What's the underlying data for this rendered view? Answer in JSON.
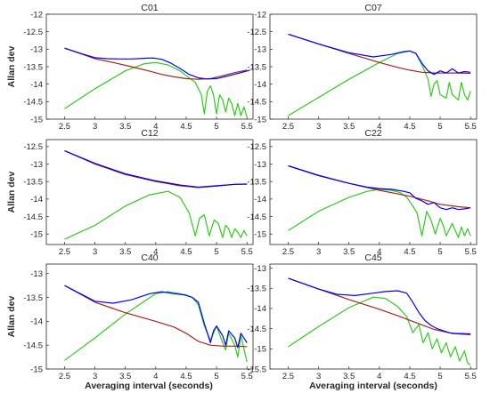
{
  "figure": {
    "ylabel": "Allan dev",
    "xlabel": "Averaging interval (seconds)",
    "colors": {
      "total": "#0000ff",
      "red": "#a0261e",
      "green": "#2ecc1a"
    },
    "x_ticks": [
      "2.5",
      "3",
      "3.5",
      "4",
      "4.5",
      "5",
      "5.5"
    ]
  },
  "chart_data": [
    {
      "type": "line",
      "title": "C01",
      "xlim": [
        2.2,
        5.6
      ],
      "ylim": [
        -15,
        -12
      ],
      "yticks": [
        "-12",
        "-12.5",
        "-13",
        "-13.5",
        "-14",
        "-14.5",
        "-15"
      ],
      "series": [
        {
          "x": [
            2.5,
            2.8,
            3.0,
            3.3,
            3.6,
            3.9,
            4.1,
            4.3,
            4.5,
            4.7,
            4.9,
            5.1,
            5.3,
            5.5
          ],
          "values": [
            -12.97,
            -13.15,
            -13.27,
            -13.38,
            -13.5,
            -13.63,
            -13.72,
            -13.79,
            -13.84,
            -13.86,
            -13.84,
            -13.76,
            -13.67,
            -13.6
          ]
        },
        {
          "x": [
            2.5,
            2.8,
            3.0,
            3.2,
            3.4,
            3.6,
            3.8,
            3.95,
            4.1,
            4.25,
            4.4,
            4.55,
            4.7,
            4.85,
            5.0,
            5.2,
            5.4,
            5.55
          ],
          "values": [
            -12.97,
            -13.14,
            -13.24,
            -13.27,
            -13.28,
            -13.28,
            -13.26,
            -13.25,
            -13.29,
            -13.4,
            -13.55,
            -13.72,
            -13.82,
            -13.85,
            -13.84,
            -13.76,
            -13.67,
            -13.6
          ]
        },
        {
          "x": [
            2.5,
            3.0,
            3.5,
            3.8,
            4.0,
            4.2,
            4.4,
            4.55,
            4.65,
            4.75,
            4.8,
            4.85,
            4.9,
            4.95,
            5.0,
            5.05,
            5.1,
            5.15,
            5.2,
            5.25,
            5.3,
            5.35,
            5.4,
            5.45,
            5.5
          ],
          "values": [
            -14.7,
            -14.13,
            -13.62,
            -13.42,
            -13.38,
            -13.45,
            -13.62,
            -13.82,
            -13.95,
            -14.3,
            -14.85,
            -14.2,
            -14.05,
            -14.3,
            -14.85,
            -14.3,
            -14.45,
            -14.8,
            -14.4,
            -14.55,
            -14.9,
            -14.55,
            -14.9,
            -14.65,
            -14.95
          ]
        }
      ]
    },
    {
      "type": "line",
      "title": "C07",
      "xlim": [
        2.2,
        5.6
      ],
      "ylim": [
        -15,
        -12
      ],
      "yticks": [
        "-12",
        "-12.5",
        "-13",
        "-13.5",
        "-14",
        "-14.5",
        "-15"
      ],
      "series": [
        {
          "x": [
            2.5,
            3.0,
            3.5,
            4.0,
            4.3,
            4.5,
            4.7,
            4.9,
            5.1,
            5.3,
            5.5
          ],
          "values": [
            -12.57,
            -12.85,
            -13.12,
            -13.38,
            -13.52,
            -13.6,
            -13.66,
            -13.68,
            -13.68,
            -13.68,
            -13.69
          ]
        },
        {
          "x": [
            2.5,
            3.0,
            3.5,
            3.9,
            4.2,
            4.4,
            4.5,
            4.6,
            4.7,
            4.8,
            4.9,
            5.0,
            5.1,
            5.2,
            5.3,
            5.4,
            5.5
          ],
          "values": [
            -12.57,
            -12.85,
            -13.1,
            -13.22,
            -13.15,
            -13.07,
            -13.05,
            -13.12,
            -13.4,
            -13.62,
            -13.72,
            -13.62,
            -13.68,
            -13.56,
            -13.68,
            -13.64,
            -13.66
          ]
        },
        {
          "x": [
            2.5,
            3.0,
            3.5,
            4.0,
            4.3,
            4.5,
            4.6,
            4.7,
            4.8,
            4.85,
            4.9,
            4.95,
            5.0,
            5.1,
            5.15,
            5.2,
            5.3,
            5.35,
            5.4,
            5.45,
            5.5
          ],
          "values": [
            -14.9,
            -14.38,
            -13.86,
            -13.38,
            -13.12,
            -13.05,
            -13.12,
            -13.45,
            -13.85,
            -14.35,
            -14.0,
            -13.9,
            -14.3,
            -14.4,
            -13.95,
            -14.3,
            -14.45,
            -13.95,
            -14.3,
            -14.45,
            -14.2
          ]
        }
      ]
    },
    {
      "type": "line",
      "title": "C12",
      "xlim": [
        2.2,
        5.6
      ],
      "ylim": [
        -15.3,
        -12.3
      ],
      "yticks": [
        "-12.5",
        "-13",
        "-13.5",
        "-14",
        "-14.5",
        "-15"
      ],
      "series": [
        {
          "x": [
            2.5,
            3.0,
            3.5,
            4.0,
            4.4,
            4.7,
            5.0,
            5.3,
            5.5
          ],
          "values": [
            -12.62,
            -13.0,
            -13.3,
            -13.5,
            -13.62,
            -13.67,
            -13.63,
            -13.58,
            -13.57
          ]
        },
        {
          "x": [
            2.5,
            3.0,
            3.5,
            4.0,
            4.4,
            4.7,
            5.0,
            5.3,
            5.5
          ],
          "values": [
            -12.62,
            -12.98,
            -13.28,
            -13.48,
            -13.6,
            -13.66,
            -13.62,
            -13.58,
            -13.57
          ]
        },
        {
          "x": [
            2.5,
            3.0,
            3.5,
            3.9,
            4.2,
            4.4,
            4.55,
            4.65,
            4.72,
            4.8,
            4.88,
            4.96,
            5.03,
            5.1,
            5.15,
            5.2,
            5.25,
            5.3,
            5.35,
            5.4,
            5.45,
            5.5
          ],
          "values": [
            -15.15,
            -14.75,
            -14.2,
            -13.88,
            -13.78,
            -13.95,
            -14.4,
            -15.05,
            -14.55,
            -14.45,
            -15.05,
            -14.6,
            -14.7,
            -15.1,
            -14.75,
            -14.85,
            -15.1,
            -14.85,
            -14.95,
            -15.1,
            -14.9,
            -15.05
          ]
        }
      ]
    },
    {
      "type": "line",
      "title": "C22",
      "xlim": [
        2.2,
        5.6
      ],
      "ylim": [
        -15.3,
        -12.3
      ],
      "yticks": [
        "-12.5",
        "-13",
        "-13.5",
        "-14",
        "-14.5",
        "-15"
      ],
      "series": [
        {
          "x": [
            2.5,
            3.0,
            3.5,
            4.0,
            4.5,
            4.8,
            5.0,
            5.3,
            5.5
          ],
          "values": [
            -13.05,
            -13.32,
            -13.55,
            -13.75,
            -13.92,
            -14.05,
            -14.15,
            -14.22,
            -14.25
          ]
        },
        {
          "x": [
            2.5,
            3.0,
            3.5,
            3.8,
            4.0,
            4.2,
            4.4,
            4.5,
            4.6,
            4.7,
            4.8,
            4.9,
            5.0,
            5.1,
            5.2,
            5.3,
            5.4,
            5.5
          ],
          "values": [
            -13.05,
            -13.33,
            -13.55,
            -13.66,
            -13.7,
            -13.72,
            -13.78,
            -13.82,
            -13.98,
            -14.05,
            -14.15,
            -14.1,
            -14.25,
            -14.3,
            -14.25,
            -14.3,
            -14.28,
            -14.25
          ]
        },
        {
          "x": [
            2.5,
            3.0,
            3.5,
            3.8,
            4.0,
            4.2,
            4.35,
            4.45,
            4.55,
            4.62,
            4.7,
            4.78,
            4.85,
            4.92,
            5.0,
            5.05,
            5.1,
            5.2,
            5.25,
            5.3,
            5.35,
            5.4,
            5.45,
            5.5
          ],
          "values": [
            -14.9,
            -14.35,
            -13.95,
            -13.78,
            -13.72,
            -13.75,
            -13.82,
            -13.95,
            -14.2,
            -14.4,
            -15.05,
            -14.35,
            -14.6,
            -15.0,
            -14.55,
            -14.75,
            -15.05,
            -14.7,
            -14.9,
            -15.1,
            -14.8,
            -15.05,
            -14.85,
            -15.05
          ]
        }
      ]
    },
    {
      "type": "line",
      "title": "C40",
      "xlim": [
        2.2,
        5.6
      ],
      "ylim": [
        -15,
        -12.8
      ],
      "yticks": [
        "-13",
        "-13.5",
        "-14",
        "-14.5",
        "-15"
      ],
      "series": [
        {
          "x": [
            2.5,
            3.0,
            3.5,
            4.0,
            4.3,
            4.5,
            4.7,
            4.9,
            5.1,
            5.3,
            5.5
          ],
          "values": [
            -13.25,
            -13.6,
            -13.82,
            -14.0,
            -14.12,
            -14.25,
            -14.42,
            -14.5,
            -14.52,
            -14.52,
            -14.53
          ]
        },
        {
          "x": [
            2.5,
            3.0,
            3.3,
            3.6,
            3.9,
            4.1,
            4.3,
            4.5,
            4.6,
            4.7,
            4.8,
            4.9,
            4.95,
            5.0,
            5.1,
            5.15,
            5.2,
            5.3,
            5.35,
            5.4,
            5.5
          ],
          "values": [
            -13.25,
            -13.58,
            -13.62,
            -13.55,
            -13.42,
            -13.38,
            -13.42,
            -13.45,
            -13.5,
            -13.6,
            -14.05,
            -14.45,
            -14.2,
            -14.1,
            -14.3,
            -14.5,
            -14.2,
            -14.35,
            -14.55,
            -14.25,
            -14.45
          ]
        },
        {
          "x": [
            2.5,
            3.0,
            3.5,
            4.0,
            4.2,
            4.4,
            4.6,
            4.7,
            4.8,
            4.9,
            4.95,
            5.0,
            5.1,
            5.15,
            5.2,
            5.3,
            5.35,
            5.4,
            5.5
          ],
          "values": [
            -14.82,
            -14.35,
            -13.85,
            -13.42,
            -13.38,
            -13.42,
            -13.5,
            -13.65,
            -14.1,
            -14.4,
            -14.25,
            -14.1,
            -14.45,
            -14.6,
            -14.25,
            -14.5,
            -14.75,
            -14.3,
            -14.85
          ]
        }
      ]
    },
    {
      "type": "line",
      "title": "C45",
      "xlim": [
        2.2,
        5.6
      ],
      "ylim": [
        -15.5,
        -12.9
      ],
      "yticks": [
        "-13",
        "-13.5",
        "-14",
        "-14.5",
        "-15",
        "-15.5"
      ],
      "series": [
        {
          "x": [
            2.5,
            3.0,
            3.5,
            4.0,
            4.3,
            4.6,
            4.9,
            5.2,
            5.5
          ],
          "values": [
            -13.25,
            -13.52,
            -13.78,
            -14.02,
            -14.18,
            -14.35,
            -14.52,
            -14.62,
            -14.65
          ]
        },
        {
          "x": [
            2.5,
            3.0,
            3.3,
            3.6,
            3.9,
            4.1,
            4.3,
            4.45,
            4.55,
            4.65,
            4.75,
            4.85,
            4.95,
            5.05,
            5.15,
            5.25,
            5.35,
            5.45,
            5.5
          ],
          "values": [
            -13.25,
            -13.52,
            -13.65,
            -13.68,
            -13.62,
            -13.58,
            -13.56,
            -13.62,
            -13.85,
            -14.1,
            -14.3,
            -14.42,
            -14.5,
            -14.55,
            -14.6,
            -14.62,
            -14.62,
            -14.63,
            -14.63
          ]
        },
        {
          "x": [
            2.5,
            3.0,
            3.5,
            3.9,
            4.1,
            4.3,
            4.45,
            4.55,
            4.65,
            4.72,
            4.8,
            4.87,
            4.95,
            5.02,
            5.1,
            5.17,
            5.25,
            5.32,
            5.4,
            5.45,
            5.5
          ],
          "values": [
            -14.95,
            -14.45,
            -13.98,
            -13.72,
            -13.75,
            -13.95,
            -14.2,
            -14.6,
            -14.4,
            -14.85,
            -14.6,
            -15.0,
            -14.75,
            -15.1,
            -14.85,
            -15.2,
            -14.95,
            -15.3,
            -15.05,
            -15.35,
            -15.4
          ]
        }
      ]
    }
  ]
}
